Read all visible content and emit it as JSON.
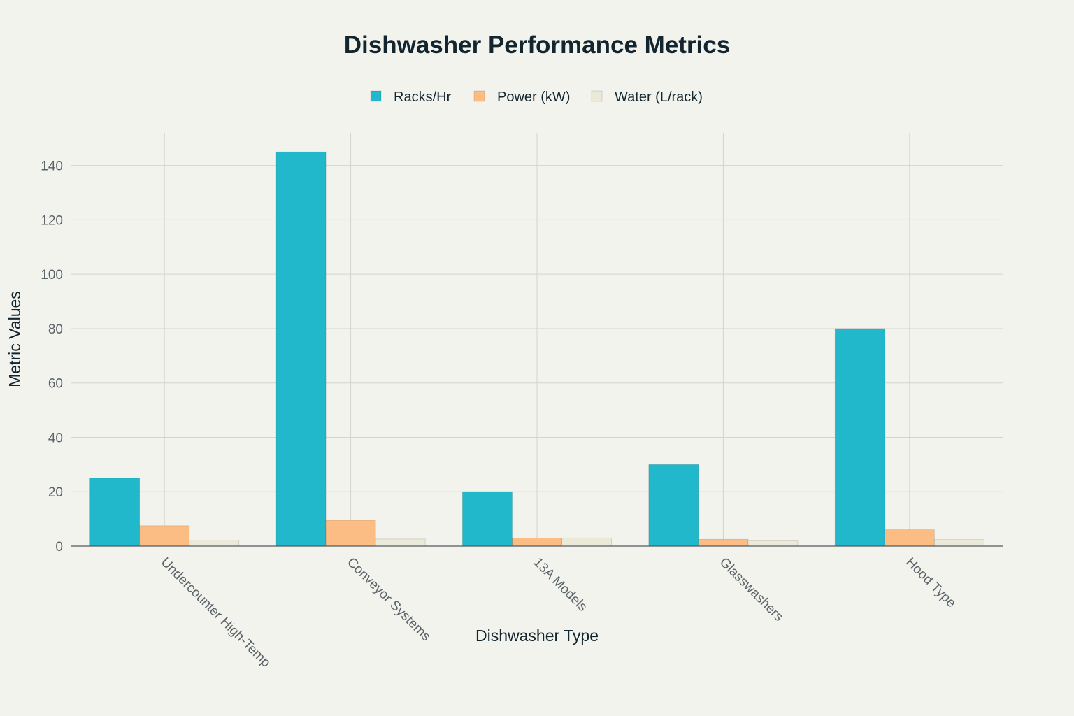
{
  "chart_data": {
    "type": "bar",
    "title": "Dishwasher Performance Metrics",
    "xlabel": "Dishwasher Type",
    "ylabel": "Metric Values",
    "categories": [
      "Undercounter High-Temp",
      "Conveyor Systems",
      "13A Models",
      "Glasswashers",
      "Hood Type"
    ],
    "series": [
      {
        "name": "Racks/Hr",
        "values": [
          25,
          145,
          20,
          30,
          80
        ],
        "color": "#21b8cb"
      },
      {
        "name": "Power (kW)",
        "values": [
          7.5,
          9.5,
          3,
          2.5,
          6
        ],
        "color": "#fbbd84"
      },
      {
        "name": "Water (L/rack)",
        "values": [
          2.2,
          2.6,
          3,
          2,
          2.4
        ],
        "color": "#ebe9d7"
      }
    ],
    "ylim": [
      0,
      152
    ],
    "yticks": [
      0,
      20,
      40,
      60,
      80,
      100,
      120,
      140
    ],
    "grid": true,
    "legend_position": "top-center"
  }
}
